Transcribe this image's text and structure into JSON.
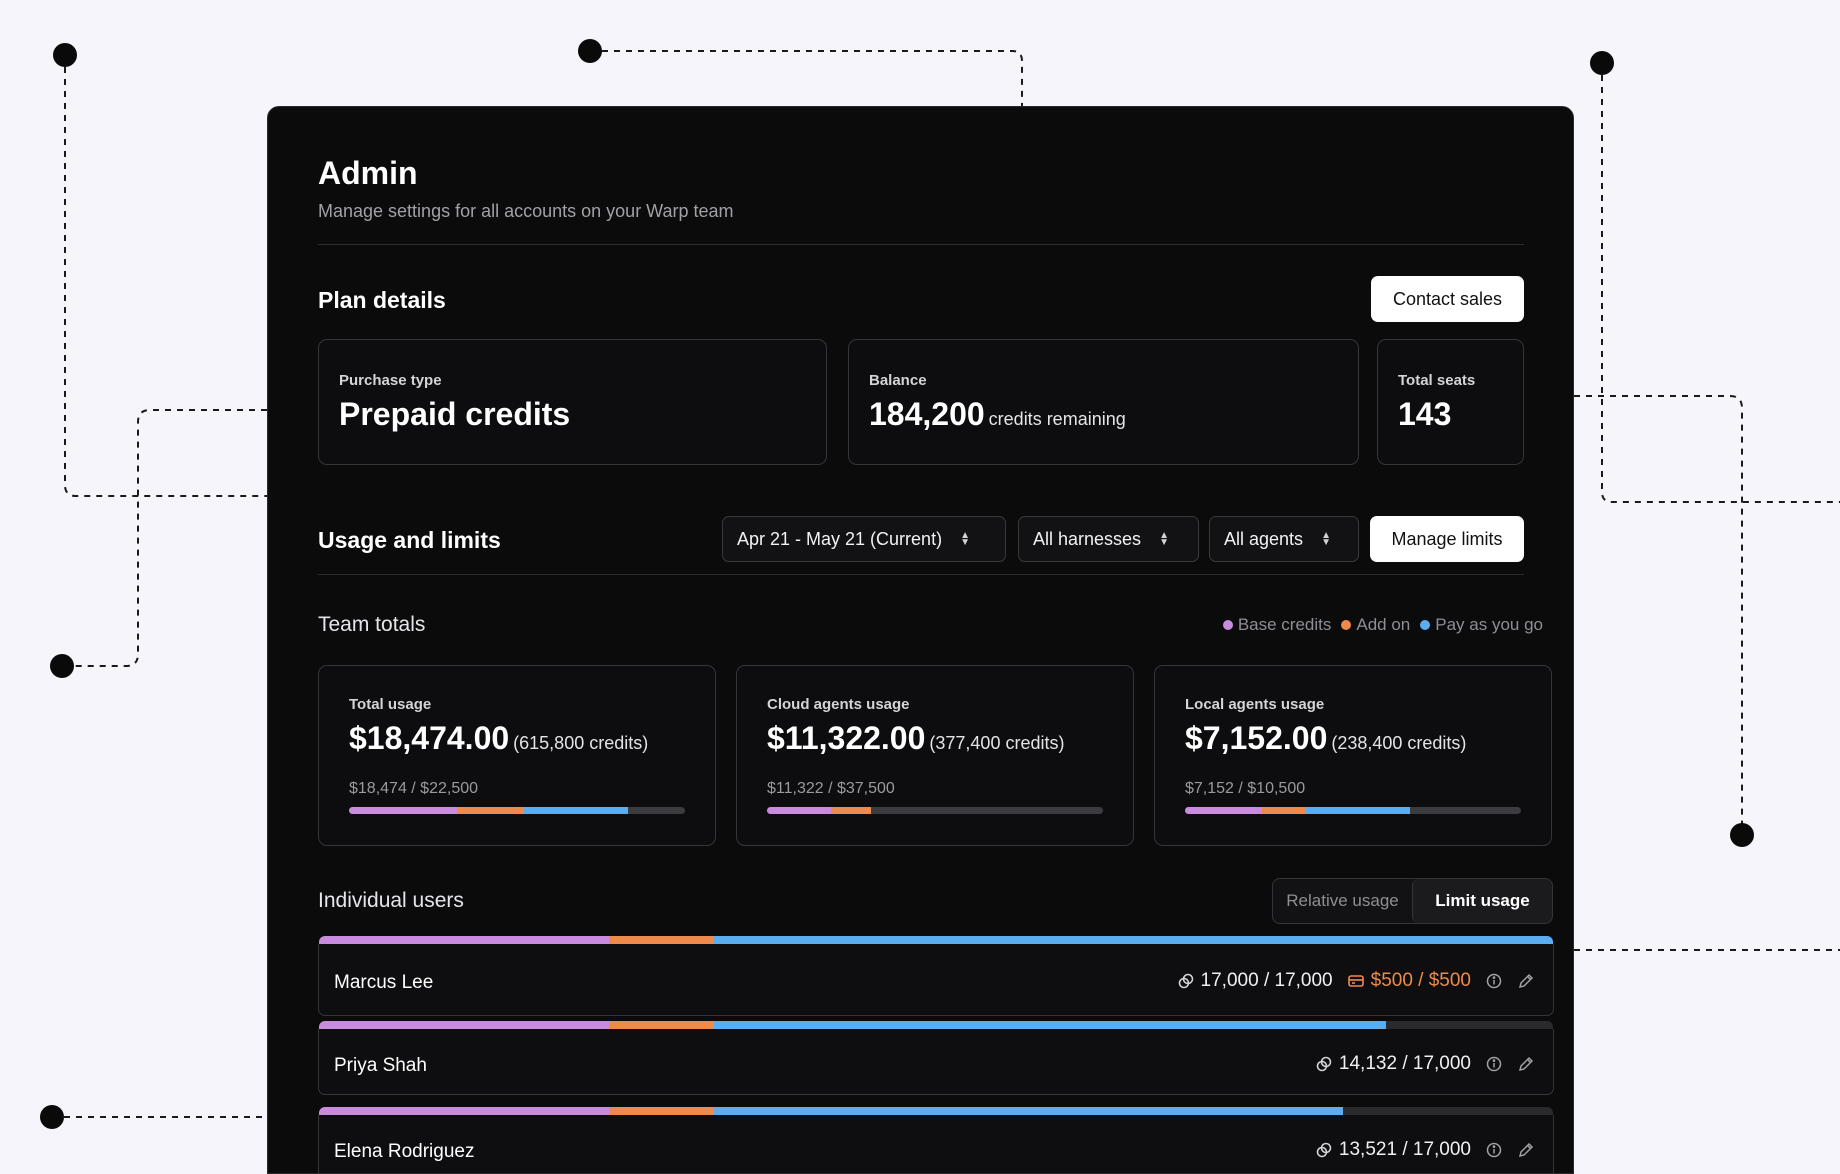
{
  "header": {
    "title": "Admin",
    "subtitle": "Manage settings for all accounts on your Warp team"
  },
  "plan": {
    "heading": "Plan details",
    "contact_label": "Contact sales",
    "cards": {
      "purchase": {
        "label": "Purchase type",
        "value": "Prepaid credits"
      },
      "balance": {
        "label": "Balance",
        "value": "184,200",
        "suffix": "credits remaining"
      },
      "seats": {
        "label": "Total seats",
        "value": "143"
      }
    }
  },
  "usage": {
    "heading": "Usage and limits",
    "filters": {
      "period": "Apr 21 - May 21 (Current)",
      "harness": "All harnesses",
      "agents": "All agents"
    },
    "manage_label": "Manage limits"
  },
  "team_totals": {
    "heading": "Team totals",
    "legend": {
      "base": "Base credits",
      "addon": "Add on",
      "payg": "Pay as you go"
    },
    "colors": {
      "base": "#c98bde",
      "addon": "#ee8a4b",
      "payg": "#5cadf0"
    },
    "cards": [
      {
        "label": "Total usage",
        "amount": "$18,474.00",
        "credits": "(615,800 credits)",
        "ratio": "$18,474 / $22,500",
        "fill": {
          "base": 0.32,
          "addon": 0.2,
          "payg": 0.31
        }
      },
      {
        "label": "Cloud agents usage",
        "amount": "$11,322.00",
        "credits": "(377,400 credits)",
        "ratio": "$11,322 / $37,500",
        "fill": {
          "base": 0.19,
          "addon": 0.12,
          "payg": 0.0
        }
      },
      {
        "label": "Local agents usage",
        "amount": "$7,152.00",
        "credits": "(238,400 credits)",
        "ratio": "$7,152 / $10,500",
        "fill": {
          "base": 0.23,
          "addon": 0.13,
          "payg": 0.31
        }
      }
    ]
  },
  "individual": {
    "heading": "Individual users",
    "toggle": {
      "relative": "Relative usage",
      "limit": "Limit usage"
    },
    "users": [
      {
        "name": "Marcus Lee",
        "credits": "17,000 / 17,000",
        "payg": "$500 / $500",
        "fill": {
          "base": 0.235,
          "addon": 0.085,
          "payg": 0.68
        }
      },
      {
        "name": "Priya Shah",
        "credits": "14,132 / 17,000",
        "payg": "",
        "fill": {
          "base": 0.235,
          "addon": 0.085,
          "payg": 0.545
        }
      },
      {
        "name": "Elena Rodriguez",
        "credits": "13,521 / 17,000",
        "payg": "",
        "fill": {
          "base": 0.235,
          "addon": 0.085,
          "payg": 0.51
        }
      }
    ]
  }
}
